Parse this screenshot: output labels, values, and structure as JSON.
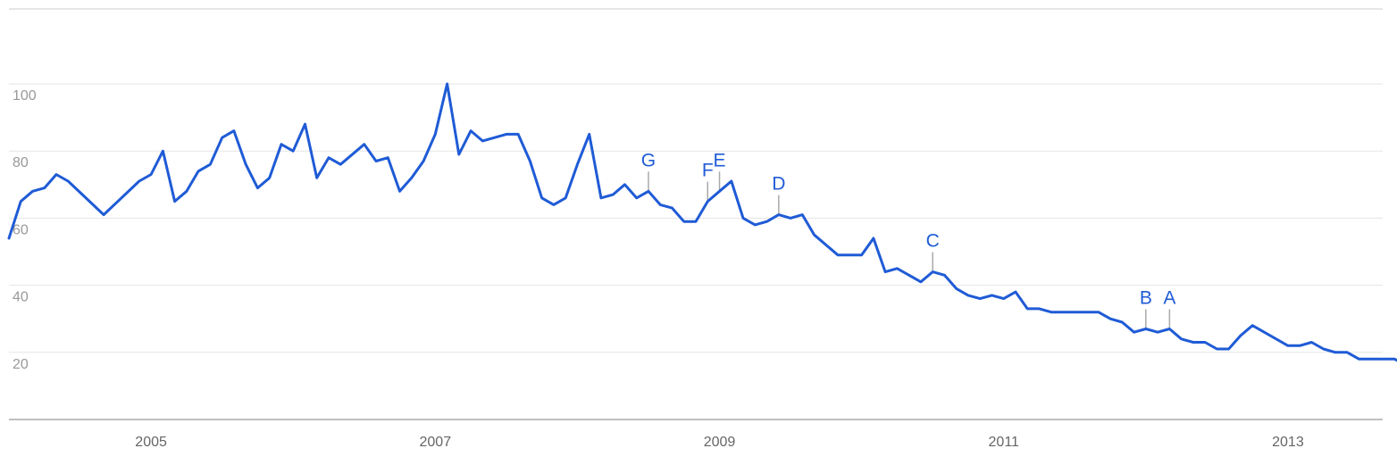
{
  "chart_data": {
    "type": "line",
    "title": "",
    "xlabel": "",
    "ylabel": "",
    "ylim": [
      0,
      100
    ],
    "xlim": [
      "2004-01",
      "2013-09"
    ],
    "y_ticks": [
      20,
      40,
      60,
      80,
      100
    ],
    "x_ticks": [
      {
        "label": "2005",
        "x": "2005-01"
      },
      {
        "label": "2007",
        "x": "2007-01"
      },
      {
        "label": "2009",
        "x": "2009-01"
      },
      {
        "label": "2011",
        "x": "2011-01"
      },
      {
        "label": "2013",
        "x": "2013-01"
      }
    ],
    "grid": true,
    "line_color": "#1f5bd6",
    "grid_color": "#e5e5e5",
    "axis_color": "#999999",
    "series": [
      {
        "points": [
          [
            "2004-01",
            54
          ],
          [
            "2004-02",
            65
          ],
          [
            "2004-03",
            68
          ],
          [
            "2004-04",
            69
          ],
          [
            "2004-05",
            73
          ],
          [
            "2004-06",
            71
          ],
          [
            "2004-09",
            61
          ],
          [
            "2004-12",
            71
          ],
          [
            "2005-01",
            73
          ],
          [
            "2005-02",
            80
          ],
          [
            "2005-03",
            65
          ],
          [
            "2005-04",
            68
          ],
          [
            "2005-05",
            74
          ],
          [
            "2005-06",
            76
          ],
          [
            "2005-07",
            84
          ],
          [
            "2005-08",
            86
          ],
          [
            "2005-09",
            76
          ],
          [
            "2005-10",
            69
          ],
          [
            "2005-11",
            72
          ],
          [
            "2005-12",
            82
          ],
          [
            "2006-01",
            80
          ],
          [
            "2006-02",
            88
          ],
          [
            "2006-03",
            72
          ],
          [
            "2006-04",
            78
          ],
          [
            "2006-05",
            76
          ],
          [
            "2006-07",
            82
          ],
          [
            "2006-08",
            77
          ],
          [
            "2006-09",
            78
          ],
          [
            "2006-10",
            68
          ],
          [
            "2006-11",
            72
          ],
          [
            "2006-12",
            77
          ],
          [
            "2007-01",
            85
          ],
          [
            "2007-02",
            100
          ],
          [
            "2007-03",
            79
          ],
          [
            "2007-04",
            86
          ],
          [
            "2007-05",
            83
          ],
          [
            "2007-07",
            85
          ],
          [
            "2007-08",
            85
          ],
          [
            "2007-09",
            77
          ],
          [
            "2007-10",
            66
          ],
          [
            "2007-11",
            64
          ],
          [
            "2007-12",
            66
          ],
          [
            "2008-01",
            76
          ],
          [
            "2008-02",
            85
          ],
          [
            "2008-03",
            66
          ],
          [
            "2008-04",
            67
          ],
          [
            "2008-05",
            70
          ],
          [
            "2008-06",
            66
          ],
          [
            "2008-07",
            68
          ],
          [
            "2008-08",
            64
          ],
          [
            "2008-09",
            63
          ],
          [
            "2008-10",
            59
          ],
          [
            "2008-11",
            59
          ],
          [
            "2008-12",
            65
          ],
          [
            "2009-01",
            68
          ],
          [
            "2009-02",
            71
          ],
          [
            "2009-03",
            60
          ],
          [
            "2009-04",
            58
          ],
          [
            "2009-05",
            59
          ],
          [
            "2009-06",
            61
          ],
          [
            "2009-07",
            60
          ],
          [
            "2009-08",
            61
          ],
          [
            "2009-09",
            55
          ],
          [
            "2009-11",
            49
          ],
          [
            "2010-01",
            49
          ],
          [
            "2010-02",
            54
          ],
          [
            "2010-03",
            44
          ],
          [
            "2010-04",
            45
          ],
          [
            "2010-06",
            41
          ],
          [
            "2010-07",
            44
          ],
          [
            "2010-08",
            43
          ],
          [
            "2010-09",
            39
          ],
          [
            "2010-10",
            37
          ],
          [
            "2010-11",
            36
          ],
          [
            "2010-12",
            37
          ],
          [
            "2011-01",
            36
          ],
          [
            "2011-02",
            38
          ],
          [
            "2011-03",
            33
          ],
          [
            "2011-04",
            33
          ],
          [
            "2011-05",
            32
          ],
          [
            "2011-09",
            32
          ],
          [
            "2011-10",
            30
          ],
          [
            "2011-11",
            29
          ],
          [
            "2011-12",
            26
          ],
          [
            "2012-01",
            27
          ],
          [
            "2012-02",
            26
          ],
          [
            "2012-03",
            27
          ],
          [
            "2012-04",
            24
          ],
          [
            "2012-05",
            23
          ],
          [
            "2012-06",
            23
          ],
          [
            "2012-07",
            21
          ],
          [
            "2012-08",
            21
          ],
          [
            "2012-09",
            25
          ],
          [
            "2012-10",
            28
          ],
          [
            "2013-01",
            22
          ],
          [
            "2013-02",
            22
          ],
          [
            "2013-03",
            23
          ],
          [
            "2013-04",
            21
          ],
          [
            "2013-05",
            20
          ],
          [
            "2013-06",
            20
          ],
          [
            "2013-07",
            18
          ],
          [
            "2013-10",
            18
          ],
          [
            "2013-11",
            16
          ],
          [
            "2013-12",
            15
          ]
        ]
      }
    ],
    "annotations": [
      {
        "label": "G",
        "x": "2008-07",
        "y": 68
      },
      {
        "label": "F",
        "x": "2008-12",
        "y": 65
      },
      {
        "label": "E",
        "x": "2009-01",
        "y": 68
      },
      {
        "label": "D",
        "x": "2009-06",
        "y": 61
      },
      {
        "label": "C",
        "x": "2010-07",
        "y": 44
      },
      {
        "label": "B",
        "x": "2012-01",
        "y": 27
      },
      {
        "label": "A",
        "x": "2012-03",
        "y": 27
      }
    ]
  }
}
